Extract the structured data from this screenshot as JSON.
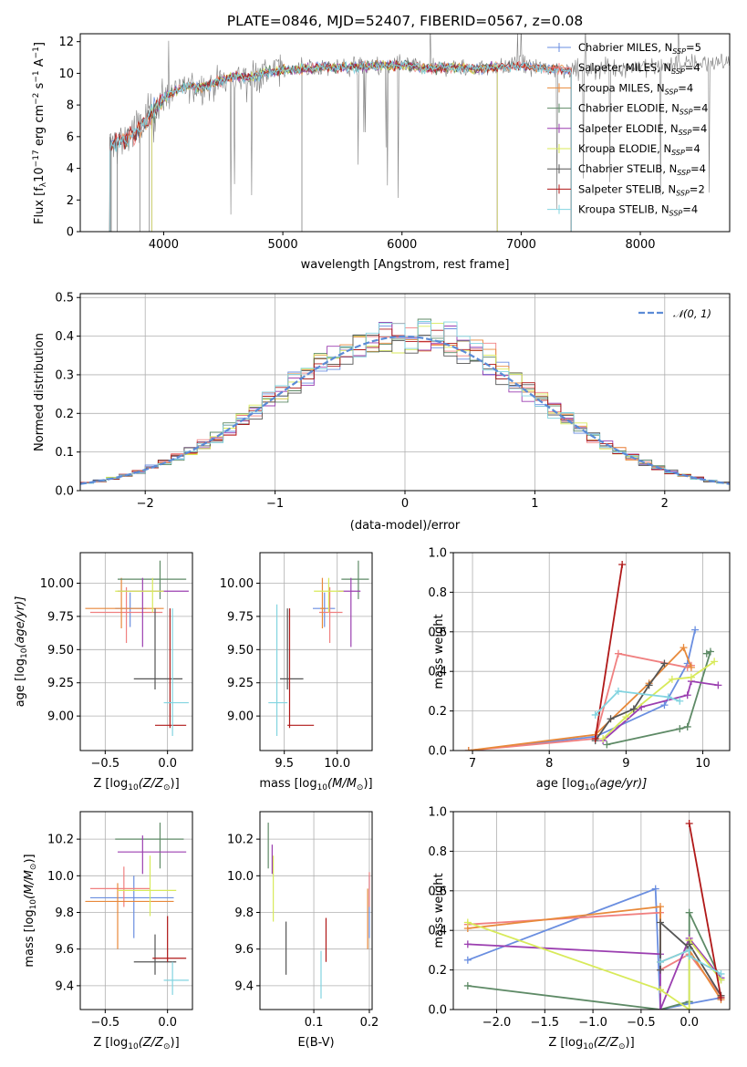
{
  "colors": {
    "chab_miles": "#6a8ee0",
    "salp_miles": "#f08080",
    "krou_miles": "#e8893a",
    "chab_elodie": "#5e8a66",
    "salp_elodie": "#9b3fb0",
    "krou_elodie": "#d8ea5a",
    "chab_stelib": "#555555",
    "salp_stelib": "#b01818",
    "krou_stelib": "#82d4e0",
    "gauss": "#5b8bd6",
    "observed": "#7f7f7f"
  },
  "chart_data": [
    {
      "id": "spectrum",
      "type": "line",
      "title": "PLATE=0846, MJD=52407, FIBERID=0567, z=0.08",
      "xlabel": "wavelength [Angstrom, rest frame]",
      "ylabel_main": "Flux [f",
      "ylabel_sub": "λ",
      "ylabel_mid": "10",
      "ylabel_exp1": "−17",
      "ylabel_rest1": " erg cm",
      "ylabel_exp2": "−2",
      "ylabel_rest2": " s",
      "ylabel_exp3": "−1",
      "ylabel_rest3": " A",
      "ylabel_exp4": "−1",
      "ylabel_end": "]",
      "xlim": [
        3300,
        8750
      ],
      "ylim": [
        0,
        12.5
      ],
      "xticks": [
        4000,
        5000,
        6000,
        7000,
        8000
      ],
      "yticks": [
        0,
        2,
        4,
        6,
        8,
        10,
        12
      ],
      "legend": [
        {
          "library": "Chabrier MILES",
          "n": "5",
          "sub": "SSP"
        },
        {
          "library": "Salpeter MILES",
          "n": "4",
          "sub": "SSP"
        },
        {
          "library": "Kroupa MILES",
          "n": "4",
          "sub": "SSP"
        },
        {
          "library": "Chabrier ELODIE",
          "n": "4",
          "sub": "SSP"
        },
        {
          "library": "Salpeter ELODIE",
          "n": "4",
          "sub": "SSP"
        },
        {
          "library": "Kroupa ELODIE",
          "n": "4",
          "sub": "SSP"
        },
        {
          "library": "Chabrier STELIB",
          "n": "4",
          "sub": "SSP"
        },
        {
          "library": "Salpeter STELIB",
          "n": "2",
          "sub": "SSP"
        },
        {
          "library": "Kroupa STELIB",
          "n": "4",
          "sub": "SSP"
        }
      ],
      "legend_n_prefix": "N",
      "envelope": {
        "x": [
          3550,
          3600,
          3700,
          3800,
          3900,
          4000,
          4100,
          4200,
          4300,
          4400,
          4500,
          4600,
          4700,
          4800,
          4900,
          5000,
          5200,
          5400,
          5600,
          5800,
          6000,
          6200,
          6400,
          6600,
          6800,
          7000,
          7200,
          7400,
          7600,
          7800,
          8000,
          8200,
          8400,
          8600,
          8750
        ],
        "y": [
          5.3,
          5.6,
          6.0,
          6.4,
          7.4,
          8.4,
          8.9,
          9.2,
          9.1,
          9.3,
          9.6,
          9.8,
          9.7,
          9.9,
          10.1,
          10.2,
          10.3,
          10.4,
          10.4,
          10.5,
          10.5,
          10.3,
          10.4,
          10.3,
          10.4,
          10.5,
          10.3,
          10.2,
          10.3,
          10.3,
          10.4,
          10.5,
          10.6,
          10.7,
          10.7
        ]
      },
      "model_ranges": [
        [
          3550,
          7420
        ],
        [
          3550,
          7420
        ],
        [
          3550,
          7420
        ],
        [
          3900,
          6800
        ],
        [
          3900,
          6800
        ],
        [
          3900,
          6800
        ],
        [
          3550,
          7420
        ],
        [
          3550,
          7420
        ],
        [
          3550,
          7420
        ]
      ]
    },
    {
      "id": "residuals",
      "type": "histogram",
      "xlabel": "(data-model)/error",
      "ylabel": "Normed distribution",
      "xlim": [
        -2.5,
        2.5
      ],
      "ylim": [
        0,
        0.51
      ],
      "xticks": [
        -2,
        -1,
        0,
        1,
        2
      ],
      "yticks": [
        0.0,
        0.1,
        0.2,
        0.3,
        0.4,
        0.5
      ],
      "legend": [
        "𝒩(0, 1)"
      ],
      "bin_width": 0.1
    },
    {
      "id": "age_vs_Z",
      "type": "errorbar",
      "xlabel_pre": "Z [log",
      "xlabel_sub": "10",
      "xlabel_post": "(Z/Z",
      "xlabel_sun": "⊙",
      "xlabel_end": ")]",
      "ylabel_pre": "age  [log",
      "ylabel_sub": "10",
      "ylabel_post": "(age/yr)]",
      "xlim": [
        -0.7,
        0.2
      ],
      "ylim": [
        8.74,
        10.23
      ],
      "xticks": [
        -0.5,
        0.0
      ],
      "yticks": [
        9.0,
        9.25,
        9.5,
        9.75,
        10.0
      ],
      "points": [
        {
          "x": -0.3,
          "y": 9.81,
          "xlo": -0.42,
          "xhi": -0.17,
          "ylo": 9.67,
          "yhi": 9.93
        },
        {
          "x": -0.33,
          "y": 9.78,
          "xlo": -0.62,
          "xhi": -0.04,
          "ylo": 9.55,
          "yhi": 9.97
        },
        {
          "x": -0.37,
          "y": 9.81,
          "xlo": -0.66,
          "xhi": -0.03,
          "ylo": 9.66,
          "yhi": 10.04
        },
        {
          "x": -0.06,
          "y": 10.03,
          "xlo": -0.4,
          "xhi": 0.15,
          "ylo": 9.88,
          "yhi": 10.17
        },
        {
          "x": -0.2,
          "y": 9.94,
          "xlo": -0.4,
          "xhi": 0.17,
          "ylo": 9.52,
          "yhi": 10.04
        },
        {
          "x": -0.12,
          "y": 9.94,
          "xlo": -0.42,
          "xhi": -0.03,
          "ylo": 9.78,
          "yhi": 10.04
        },
        {
          "x": -0.1,
          "y": 9.28,
          "xlo": -0.27,
          "xhi": 0.12,
          "ylo": 9.2,
          "yhi": 9.81
        },
        {
          "x": 0.02,
          "y": 8.93,
          "xlo": -0.1,
          "xhi": 0.15,
          "ylo": 8.91,
          "yhi": 9.81
        },
        {
          "x": 0.04,
          "y": 9.1,
          "xlo": -0.03,
          "xhi": 0.17,
          "ylo": 8.85,
          "yhi": 9.81
        }
      ]
    },
    {
      "id": "age_vs_mass",
      "type": "errorbar",
      "xlabel_pre": "mass [log",
      "xlabel_sub": "10",
      "xlabel_post": "(M/M",
      "xlabel_sun": "⊙",
      "xlabel_end": ")]",
      "xlim": [
        9.27,
        10.33
      ],
      "ylim": [
        8.74,
        10.23
      ],
      "xticks": [
        9.5,
        10.0
      ],
      "yticks": [
        9.0,
        9.25,
        9.5,
        9.75,
        10.0
      ],
      "points": [
        {
          "x": 9.88,
          "y": 9.81,
          "xlo": 9.77,
          "xhi": 9.98,
          "ylo": 9.67,
          "yhi": 9.93
        },
        {
          "x": 9.93,
          "y": 9.78,
          "xlo": 9.83,
          "xhi": 10.05,
          "ylo": 9.55,
          "yhi": 9.97
        },
        {
          "x": 9.86,
          "y": 9.81,
          "xlo": 9.84,
          "xhi": 9.89,
          "ylo": 9.66,
          "yhi": 10.04
        },
        {
          "x": 10.2,
          "y": 10.03,
          "xlo": 10.04,
          "xhi": 10.3,
          "ylo": 9.88,
          "yhi": 10.17
        },
        {
          "x": 10.13,
          "y": 9.94,
          "xlo": 10.01,
          "xhi": 10.22,
          "ylo": 9.52,
          "yhi": 10.04
        },
        {
          "x": 9.92,
          "y": 9.94,
          "xlo": 9.78,
          "xhi": 10.06,
          "ylo": 9.78,
          "yhi": 10.04
        },
        {
          "x": 9.53,
          "y": 9.28,
          "xlo": 9.46,
          "xhi": 9.68,
          "ylo": 9.2,
          "yhi": 9.81
        },
        {
          "x": 9.55,
          "y": 8.93,
          "xlo": 9.53,
          "xhi": 9.78,
          "ylo": 8.91,
          "yhi": 9.81
        },
        {
          "x": 9.43,
          "y": 9.1,
          "xlo": 9.35,
          "xhi": 9.53,
          "ylo": 8.85,
          "yhi": 9.84
        }
      ]
    },
    {
      "id": "weight_vs_age",
      "type": "line",
      "xlabel_pre": "age  [log",
      "xlabel_sub": "10",
      "xlabel_post": "(age/yr)]",
      "ylabel": "mass weight",
      "xlim": [
        6.75,
        10.35
      ],
      "ylim": [
        0,
        1.0
      ],
      "xticks": [
        7,
        8,
        9,
        10
      ],
      "yticks": [
        0.0,
        0.2,
        0.4,
        0.6,
        0.8,
        1.0
      ],
      "series": [
        {
          "x": [
            6.95,
            8.6,
            9.5,
            9.8,
            9.9
          ],
          "y": [
            0.0,
            0.07,
            0.23,
            0.44,
            0.61
          ]
        },
        {
          "x": [
            6.95,
            8.6,
            8.9,
            9.8,
            9.85
          ],
          "y": [
            0.0,
            0.06,
            0.49,
            0.42,
            0.43
          ]
        },
        {
          "x": [
            6.95,
            8.6,
            9.3,
            9.75,
            9.85
          ],
          "y": [
            0.0,
            0.08,
            0.34,
            0.52,
            0.42
          ]
        },
        {
          "x": [
            8.75,
            9.7,
            9.8,
            10.1,
            10.05
          ],
          "y": [
            0.03,
            0.11,
            0.12,
            0.5,
            0.49
          ]
        },
        {
          "x": [
            8.7,
            9.2,
            9.8,
            9.85,
            10.2
          ],
          "y": [
            0.05,
            0.22,
            0.28,
            0.35,
            0.33
          ]
        },
        {
          "x": [
            8.7,
            9.0,
            9.6,
            9.85,
            10.15
          ],
          "y": [
            0.06,
            0.17,
            0.36,
            0.37,
            0.45
          ]
        },
        {
          "x": [
            8.6,
            8.8,
            9.1,
            9.3,
            9.5
          ],
          "y": [
            0.05,
            0.16,
            0.21,
            0.33,
            0.44
          ]
        },
        {
          "x": [
            8.6,
            8.95
          ],
          "y": [
            0.06,
            0.94
          ]
        },
        {
          "x": [
            8.6,
            8.9,
            9.55,
            9.7
          ],
          "y": [
            0.18,
            0.3,
            0.27,
            0.25
          ]
        }
      ]
    },
    {
      "id": "mass_vs_Z",
      "type": "errorbar",
      "xlabel_pre": "Z [log",
      "xlabel_sub": "10",
      "xlabel_post": "(Z/Z",
      "xlabel_sun": "⊙",
      "xlabel_end": ")]",
      "ylabel_pre": "mass [log",
      "ylabel_sub": "10",
      "ylabel_post": "(M/M",
      "ylabel_sun": "⊙",
      "ylabel_end": ")]",
      "xlim": [
        -0.7,
        0.2
      ],
      "ylim": [
        9.27,
        10.35
      ],
      "xticks": [
        -0.5,
        0.0
      ],
      "yticks": [
        9.4,
        9.6,
        9.8,
        10.0,
        10.2
      ],
      "points": [
        {
          "x": -0.27,
          "y": 9.88,
          "xlo": -0.62,
          "xhi": 0.05,
          "ylo": 9.66,
          "yhi": 10.0
        },
        {
          "x": -0.35,
          "y": 9.93,
          "xlo": -0.62,
          "xhi": -0.14,
          "ylo": 9.83,
          "yhi": 10.05
        },
        {
          "x": -0.4,
          "y": 9.86,
          "xlo": -0.66,
          "xhi": 0.05,
          "ylo": 9.6,
          "yhi": 9.96
        },
        {
          "x": -0.06,
          "y": 10.2,
          "xlo": -0.42,
          "xhi": 0.13,
          "ylo": 10.04,
          "yhi": 10.29
        },
        {
          "x": -0.2,
          "y": 10.13,
          "xlo": -0.4,
          "xhi": 0.15,
          "ylo": 10.01,
          "yhi": 10.22
        },
        {
          "x": -0.14,
          "y": 9.92,
          "xlo": -0.4,
          "xhi": 0.07,
          "ylo": 9.78,
          "yhi": 10.11
        },
        {
          "x": -0.1,
          "y": 9.53,
          "xlo": -0.27,
          "xhi": 0.07,
          "ylo": 9.46,
          "yhi": 9.68
        },
        {
          "x": 0.0,
          "y": 9.55,
          "xlo": -0.12,
          "xhi": 0.15,
          "ylo": 9.53,
          "yhi": 9.78
        },
        {
          "x": 0.04,
          "y": 9.43,
          "xlo": -0.03,
          "xhi": 0.17,
          "ylo": 9.35,
          "yhi": 9.53
        }
      ]
    },
    {
      "id": "mass_vs_EBV",
      "type": "errorbar",
      "xlabel": "E(B-V)",
      "xlim": [
        0.003,
        0.205
      ],
      "ylim": [
        9.27,
        10.35
      ],
      "xticks": [
        0.1,
        0.2
      ],
      "yticks": [
        9.4,
        9.6,
        9.8,
        10.0,
        10.2
      ],
      "points": [
        {
          "x": 0.2,
          "y": 9.88,
          "ylo": 9.66,
          "yhi": 10.0
        },
        {
          "x": 0.2,
          "y": 9.93,
          "ylo": 9.83,
          "yhi": 10.02
        },
        {
          "x": 0.197,
          "y": 9.86,
          "ylo": 9.6,
          "yhi": 9.93
        },
        {
          "x": 0.018,
          "y": 10.2,
          "ylo": 10.04,
          "yhi": 10.29
        },
        {
          "x": 0.025,
          "y": 10.13,
          "ylo": 10.01,
          "yhi": 10.17
        },
        {
          "x": 0.027,
          "y": 9.92,
          "ylo": 9.75,
          "yhi": 10.11
        },
        {
          "x": 0.05,
          "y": 9.53,
          "ylo": 9.46,
          "yhi": 9.75
        },
        {
          "x": 0.122,
          "y": 9.55,
          "ylo": 9.53,
          "yhi": 9.77
        },
        {
          "x": 0.113,
          "y": 9.43,
          "ylo": 9.33,
          "yhi": 9.59
        }
      ]
    },
    {
      "id": "weight_vs_Z",
      "type": "line",
      "xlabel_pre": "Z [log",
      "xlabel_sub": "10",
      "xlabel_post": "(Z/Z",
      "xlabel_sun": "⊙",
      "xlabel_end": ")]",
      "ylabel": "mass weight",
      "xlim": [
        -2.45,
        0.42
      ],
      "ylim": [
        0,
        1.0
      ],
      "xticks": [
        -2.0,
        -1.5,
        -1.0,
        -0.5,
        0.0
      ],
      "yticks": [
        0.0,
        0.2,
        0.4,
        0.6,
        0.8,
        1.0
      ],
      "tick_format": "one_decimal",
      "series": [
        {
          "x": [
            -2.3,
            -0.35,
            -0.3,
            0.0,
            0.33
          ],
          "y": [
            0.25,
            0.61,
            0.0,
            0.03,
            0.06
          ]
        },
        {
          "x": [
            -2.3,
            -0.3,
            -0.3,
            0.0,
            0.33
          ],
          "y": [
            0.43,
            0.49,
            0.2,
            0.28,
            0.07
          ]
        },
        {
          "x": [
            -2.3,
            -0.3,
            -0.3,
            0.0,
            0.33
          ],
          "y": [
            0.41,
            0.52,
            0.24,
            0.3,
            0.05
          ]
        },
        {
          "x": [
            -2.3,
            -0.3,
            0.0,
            0.0,
            0.33
          ],
          "y": [
            0.12,
            0.0,
            0.04,
            0.49,
            0.15
          ]
        },
        {
          "x": [
            -2.3,
            -0.3,
            -0.3,
            0.0,
            0.33
          ],
          "y": [
            0.33,
            0.28,
            0.0,
            0.36,
            0.16
          ]
        },
        {
          "x": [
            -2.3,
            -0.3,
            0.0,
            0.0,
            0.33
          ],
          "y": [
            0.44,
            0.1,
            0.0,
            0.35,
            0.15
          ]
        },
        {
          "x": [
            -0.3,
            -0.3,
            0.0,
            0.0,
            0.33
          ],
          "y": [
            0.2,
            0.44,
            0.31,
            0.33,
            0.07
          ]
        },
        {
          "x": [
            0.0,
            0.33
          ],
          "y": [
            0.94,
            0.06
          ]
        },
        {
          "x": [
            -0.3,
            0.0,
            0.0,
            0.33
          ],
          "y": [
            0.24,
            0.3,
            0.27,
            0.18
          ]
        }
      ]
    }
  ]
}
